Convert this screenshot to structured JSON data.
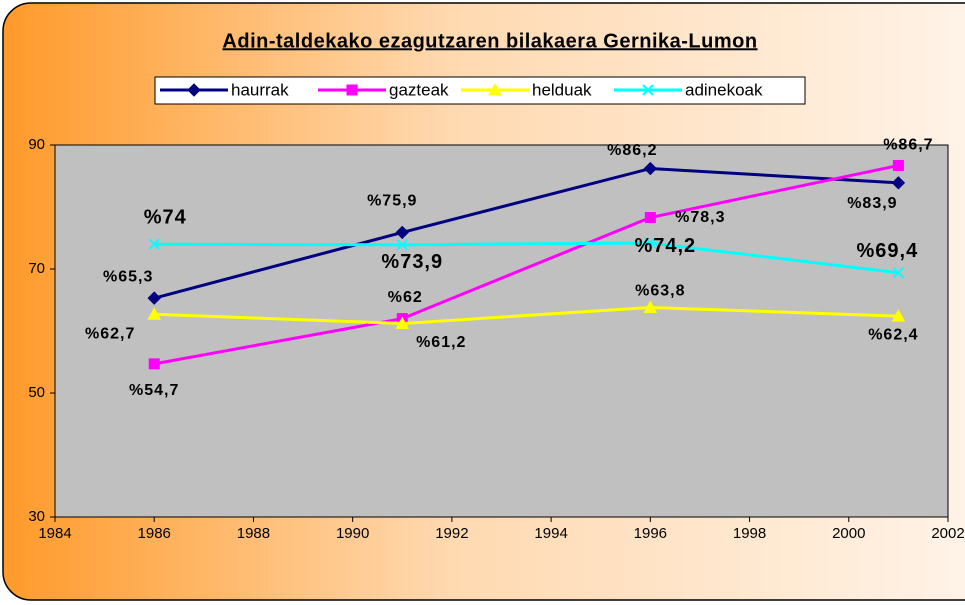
{
  "chart_data": {
    "type": "line",
    "title": "Adin-taldekako ezagutzaren bilakaera Gernika-Lumon",
    "x": [
      1986,
      1991,
      1996,
      2001
    ],
    "series": [
      {
        "name": "haurrak",
        "color": "#000080",
        "values": [
          65.3,
          75.9,
          86.2,
          83.9
        ],
        "value_labels": [
          "%65,3",
          "%75,9",
          "%86,2",
          "%83,9"
        ]
      },
      {
        "name": "gazteak",
        "color": "#ff00ff",
        "values": [
          54.7,
          62,
          78.3,
          86.7
        ],
        "value_labels": [
          "%54,7",
          "%62",
          "%78,3",
          "%86,7"
        ]
      },
      {
        "name": "helduak",
        "color": "#ffff00",
        "values": [
          62.7,
          61.2,
          63.8,
          62.4
        ],
        "value_labels": [
          "%62,7",
          "%61,2",
          "%63,8",
          "%62,4"
        ]
      },
      {
        "name": "adinekoak",
        "color": "#00ffff",
        "values": [
          74,
          73.9,
          74.2,
          69.4
        ],
        "value_labels": [
          "%74",
          "%73,9",
          "%74,2",
          "%69,4"
        ]
      }
    ],
    "xlim": [
      1984,
      2002
    ],
    "xticks": [
      1984,
      1986,
      1988,
      1990,
      1992,
      1994,
      1996,
      1998,
      2000,
      2002
    ],
    "ylim": [
      30,
      90
    ],
    "yticks": [
      30,
      50,
      70,
      90
    ],
    "legend": "top"
  }
}
